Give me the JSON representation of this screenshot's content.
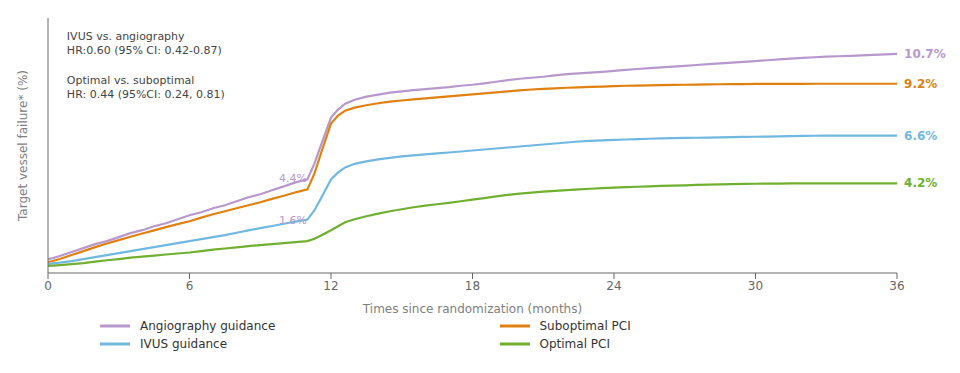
{
  "chart_data": {
    "type": "line",
    "xlabel": "Times since randomization (months)",
    "ylabel": "Target vessel failure* (%)",
    "xlim": [
      0,
      36
    ],
    "ylim": [
      -0.3,
      12.5
    ],
    "xticks": [
      0,
      6,
      12,
      18,
      24,
      30,
      36
    ],
    "yticks": [],
    "tick_labels": "x",
    "grid": false,
    "legend": "bottom",
    "x": [
      0,
      0.2,
      0.5,
      1,
      1.5,
      2,
      2.5,
      3,
      3.5,
      4,
      4.5,
      5,
      5.5,
      6,
      6.5,
      7,
      7.5,
      8,
      8.5,
      9,
      9.5,
      10,
      10.5,
      11,
      11.3,
      11.6,
      12,
      12.3,
      12.6,
      13,
      13.5,
      14,
      14.5,
      15,
      15.5,
      16,
      16.5,
      17,
      17.5,
      18,
      18.5,
      19,
      19.5,
      20,
      20.5,
      21,
      21.5,
      22,
      22.5,
      23,
      23.5,
      24,
      24.5,
      25,
      25.5,
      26,
      26.5,
      27,
      27.5,
      28,
      28.5,
      29,
      29.5,
      30,
      30.5,
      31,
      31.5,
      32,
      32.5,
      33,
      33.5,
      34,
      34.5,
      35,
      35.5,
      36
    ],
    "series": [
      {
        "name": "Angiography guidance",
        "color": "#b898cc",
        "values": [
          0.4,
          0.45,
          0.55,
          0.75,
          0.95,
          1.15,
          1.3,
          1.5,
          1.7,
          1.85,
          2.05,
          2.2,
          2.4,
          2.6,
          2.75,
          2.95,
          3.1,
          3.3,
          3.5,
          3.65,
          3.85,
          4.05,
          4.25,
          4.4,
          5.2,
          6.2,
          7.5,
          7.9,
          8.2,
          8.4,
          8.55,
          8.65,
          8.75,
          8.82,
          8.88,
          8.93,
          8.98,
          9.03,
          9.1,
          9.15,
          9.22,
          9.3,
          9.38,
          9.45,
          9.5,
          9.55,
          9.62,
          9.68,
          9.72,
          9.76,
          9.8,
          9.85,
          9.9,
          9.94,
          9.98,
          10.02,
          10.06,
          10.1,
          10.14,
          10.18,
          10.22,
          10.26,
          10.3,
          10.34,
          10.38,
          10.42,
          10.46,
          10.5,
          10.53,
          10.56,
          10.58,
          10.6,
          10.62,
          10.65,
          10.67,
          10.7
        ]
      },
      {
        "name": "Suboptimal PCI",
        "color": "#e08010",
        "values": [
          0.25,
          0.3,
          0.4,
          0.6,
          0.8,
          1.0,
          1.18,
          1.35,
          1.52,
          1.68,
          1.84,
          2.0,
          2.15,
          2.3,
          2.48,
          2.65,
          2.8,
          2.95,
          3.1,
          3.25,
          3.42,
          3.58,
          3.75,
          3.9,
          4.7,
          5.8,
          7.2,
          7.6,
          7.85,
          8.0,
          8.12,
          8.22,
          8.3,
          8.36,
          8.42,
          8.47,
          8.52,
          8.57,
          8.62,
          8.67,
          8.72,
          8.77,
          8.82,
          8.87,
          8.91,
          8.94,
          8.97,
          9.0,
          9.02,
          9.04,
          9.06,
          9.08,
          9.1,
          9.11,
          9.12,
          9.13,
          9.14,
          9.15,
          9.16,
          9.17,
          9.175,
          9.18,
          9.185,
          9.19,
          9.193,
          9.195,
          9.197,
          9.198,
          9.199,
          9.2,
          9.2,
          9.2,
          9.2,
          9.2,
          9.2,
          9.2
        ]
      },
      {
        "name": "IVUS guidance",
        "color": "#70b8e0",
        "values": [
          0.15,
          0.18,
          0.22,
          0.3,
          0.4,
          0.5,
          0.6,
          0.7,
          0.8,
          0.9,
          1.0,
          1.1,
          1.2,
          1.3,
          1.4,
          1.5,
          1.6,
          1.72,
          1.84,
          1.95,
          2.06,
          2.17,
          2.28,
          2.38,
          2.85,
          3.5,
          4.4,
          4.75,
          5.0,
          5.18,
          5.3,
          5.4,
          5.48,
          5.55,
          5.6,
          5.65,
          5.7,
          5.75,
          5.8,
          5.85,
          5.9,
          5.95,
          6.0,
          6.05,
          6.1,
          6.15,
          6.2,
          6.25,
          6.3,
          6.33,
          6.36,
          6.38,
          6.4,
          6.42,
          6.44,
          6.46,
          6.47,
          6.48,
          6.49,
          6.5,
          6.51,
          6.52,
          6.53,
          6.54,
          6.55,
          6.56,
          6.57,
          6.58,
          6.59,
          6.6,
          6.6,
          6.6,
          6.6,
          6.6,
          6.6,
          6.6
        ]
      },
      {
        "name": "Optimal PCI",
        "color": "#70b030",
        "values": [
          0.05,
          0.07,
          0.1,
          0.15,
          0.2,
          0.27,
          0.34,
          0.4,
          0.47,
          0.52,
          0.57,
          0.63,
          0.68,
          0.73,
          0.8,
          0.87,
          0.93,
          0.99,
          1.05,
          1.1,
          1.15,
          1.2,
          1.25,
          1.3,
          1.42,
          1.6,
          1.85,
          2.05,
          2.25,
          2.4,
          2.55,
          2.68,
          2.8,
          2.9,
          3.0,
          3.08,
          3.15,
          3.22,
          3.3,
          3.38,
          3.46,
          3.55,
          3.62,
          3.68,
          3.73,
          3.78,
          3.82,
          3.86,
          3.9,
          3.93,
          3.96,
          3.99,
          4.01,
          4.03,
          4.05,
          4.07,
          4.09,
          4.1,
          4.12,
          4.14,
          4.15,
          4.16,
          4.17,
          4.18,
          4.19,
          4.19,
          4.2,
          4.2,
          4.2,
          4.2,
          4.2,
          4.2,
          4.2,
          4.2,
          4.2,
          4.2
        ]
      }
    ],
    "annotations": [
      {
        "text": "10.7%",
        "x": 36.3,
        "y": 10.7,
        "color": "#b898cc"
      },
      {
        "text": "9.2%",
        "x": 36.3,
        "y": 9.2,
        "color": "#e08010"
      },
      {
        "text": "6.6%",
        "x": 36.3,
        "y": 6.6,
        "color": "#70b8e0"
      },
      {
        "text": "4.2%",
        "x": 36.3,
        "y": 4.2,
        "color": "#70b030"
      },
      {
        "text": "IVUS vs. angiography\nHR:0.60 (95% CI: 0.42-0.87)",
        "x": 0.8,
        "y": 11.8
      },
      {
        "text": "Optimal vs. suboptimal\nHR: 0.44 (95%CI: 0.24, 0.81)",
        "x": 0.8,
        "y": 9.6
      },
      {
        "text": "4.4%",
        "x": 9.8,
        "y": 4.65,
        "color": "#b898cc"
      },
      {
        "text": "1.6%",
        "x": 9.8,
        "y": 2.55,
        "color": "#b898cc"
      }
    ]
  }
}
